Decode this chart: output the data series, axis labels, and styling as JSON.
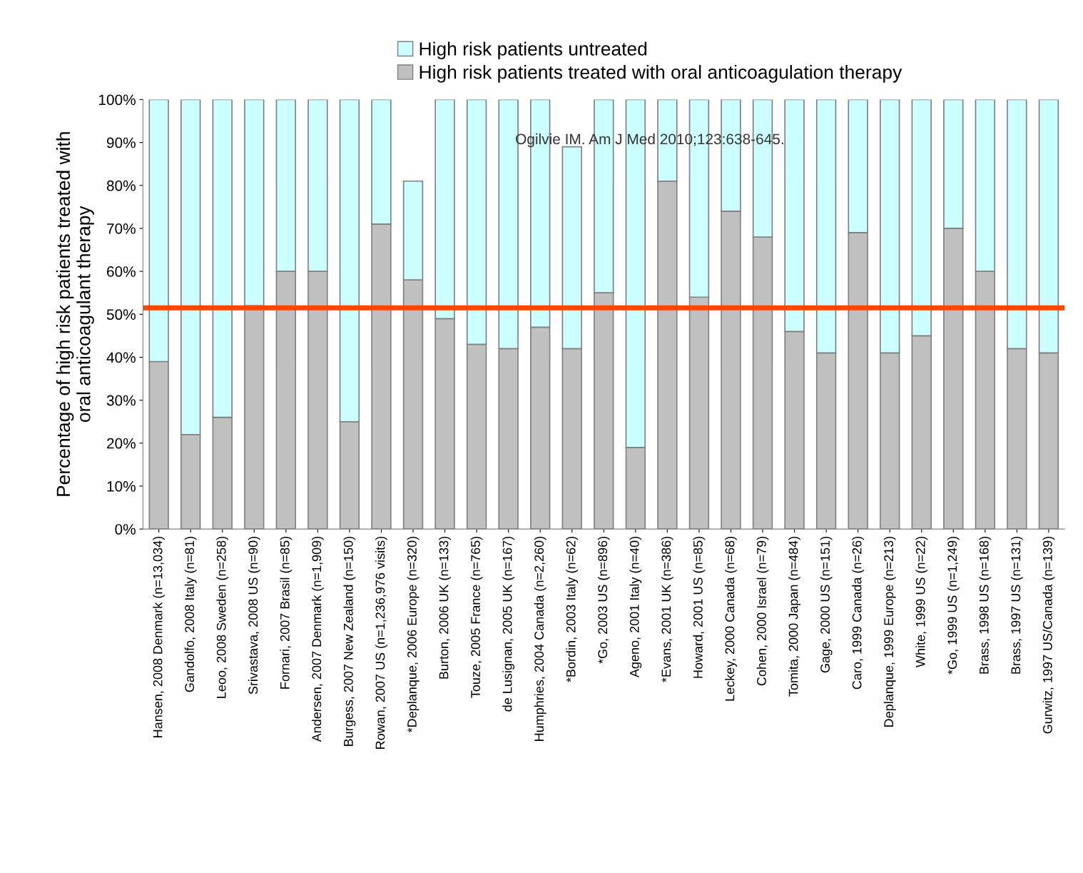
{
  "chart_data": {
    "type": "bar",
    "stacked": true,
    "ylabel": "Percentage of high risk patients treated with\noral anticoagulant therapy",
    "categories": [
      "Hansen, 2008 Denmark (n=13,034)",
      "Gandolfo, 2008 Italy (n=81)",
      "Leoo, 2008 Sweden (n=258)",
      "Srivastava, 2008 US (n=90)",
      "Fornari, 2007 Brasil (n=85)",
      "Andersen, 2007 Denmark (n=1,909)",
      "Burgess, 2007 New Zealand (n=150)",
      "Rowan, 2007 US (n=1,236,976 visits)",
      "*Deplanque, 2006 Europe (n=320)",
      "Burton, 2006 UK (n=133)",
      "Touze, 2005 France (n=765)",
      "de Lusignan, 2005 UK (n=167)",
      "Humphries, 2004 Canada (n=2,260)",
      "*Bordin, 2003 Italy (n=62)",
      "*Go, 2003 US (n=896)",
      "Ageno, 2001 Italy (n=40)",
      "*Evans, 2001 UK (n=386)",
      "Howard, 2001 US (n=85)",
      "Leckey, 2000 Canada (n=68)",
      "Cohen, 2000 Israel (n=79)",
      "Tomita, 2000 Japan (n=484)",
      "Gage, 2000 US (n=151)",
      "Caro, 1999 Canada (n=26)",
      "Deplanque, 1999 Europe (n=213)",
      "White, 1999 US (n=22)",
      "*Go, 1999 US (n=1,249)",
      "Brass, 1998 US (n=168)",
      "Brass, 1997 US (n=131)",
      "Gurwitz, 1997 US/Canada (n=139)"
    ],
    "series": [
      {
        "name": "High risk patients treated with oral anticoagulation therapy",
        "color": "#c0c0c0",
        "values": [
          39,
          22,
          26,
          52,
          60,
          60,
          25,
          71,
          58,
          49,
          43,
          42,
          47,
          42,
          55,
          19,
          81,
          54,
          74,
          68,
          46,
          41,
          69,
          41,
          45,
          70,
          60,
          42,
          41
        ]
      },
      {
        "name": "High risk patients untreated",
        "color": "#ccffff",
        "values": [
          61,
          78,
          74,
          48,
          40,
          40,
          75,
          29,
          23,
          51,
          57,
          58,
          53,
          47,
          45,
          81,
          19,
          46,
          26,
          32,
          54,
          59,
          31,
          59,
          55,
          30,
          40,
          58,
          59
        ]
      }
    ],
    "ylim": [
      0,
      100
    ],
    "yticks": [
      {
        "value": 0,
        "label": "0%"
      },
      {
        "value": 10,
        "label": "10%"
      },
      {
        "value": 20,
        "label": "20%"
      },
      {
        "value": 30,
        "label": "30%"
      },
      {
        "value": 40,
        "label": "40%"
      },
      {
        "value": 50,
        "label": "50%"
      },
      {
        "value": 60,
        "label": "60%"
      },
      {
        "value": 70,
        "label": "70%"
      },
      {
        "value": 80,
        "label": "80%"
      },
      {
        "value": 90,
        "label": "90%"
      },
      {
        "value": 100,
        "label": "100%"
      }
    ],
    "ref_lines": [
      {
        "axis": "y",
        "value": 51.5,
        "color": "#ff4500"
      }
    ],
    "annotations": [
      "Ogilvie IM. Am J Med 2010;123:638-645."
    ],
    "legend": "top",
    "grid": false
  }
}
